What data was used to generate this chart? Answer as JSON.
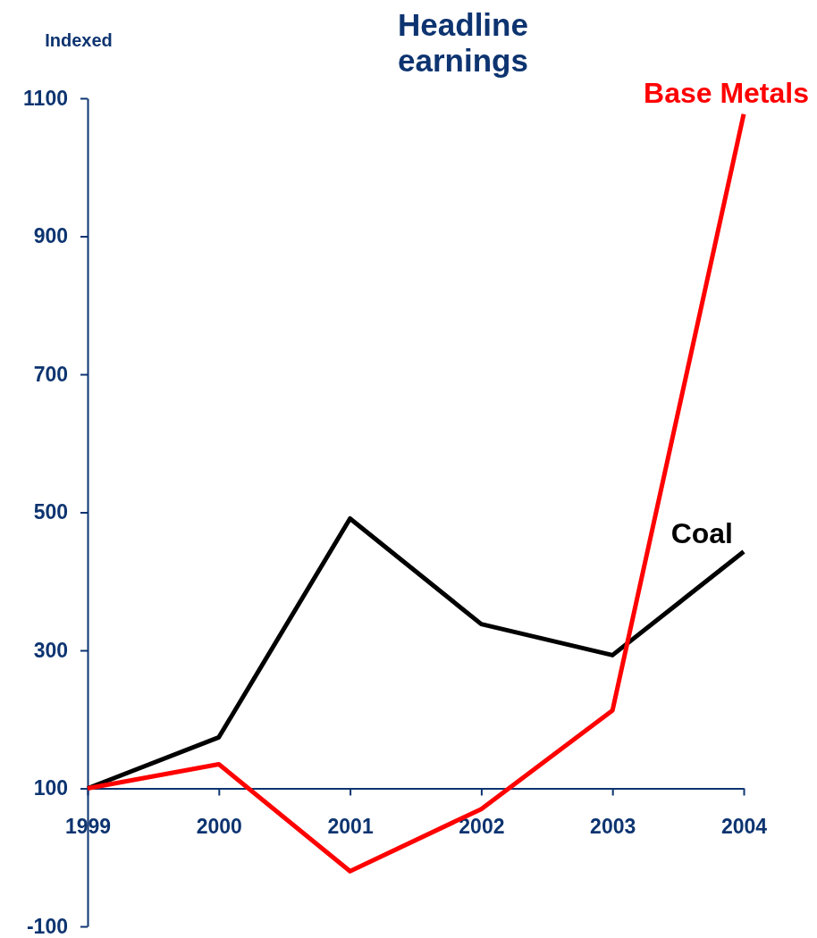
{
  "chart_data": {
    "type": "line",
    "title": "Headline earnings",
    "ylabel": "Indexed",
    "x": [
      1999,
      2000,
      2001,
      2002,
      2003,
      2004
    ],
    "xlim": [
      1999,
      2004
    ],
    "xticks": [
      1999,
      2000,
      2001,
      2002,
      2003,
      2004
    ],
    "ylim": [
      -100,
      1100
    ],
    "yticks": [
      -100,
      100,
      300,
      500,
      700,
      900,
      1100
    ],
    "grid": false,
    "legend": false,
    "marker": "none",
    "line_style": "solid",
    "series": [
      {
        "name": "Coal",
        "color": "#000000",
        "values": [
          100,
          174,
          491,
          338,
          293,
          443
        ]
      },
      {
        "name": "Base Metals",
        "color": "#ff0000",
        "values": [
          100,
          135,
          -20,
          70,
          213,
          1077
        ]
      }
    ]
  }
}
